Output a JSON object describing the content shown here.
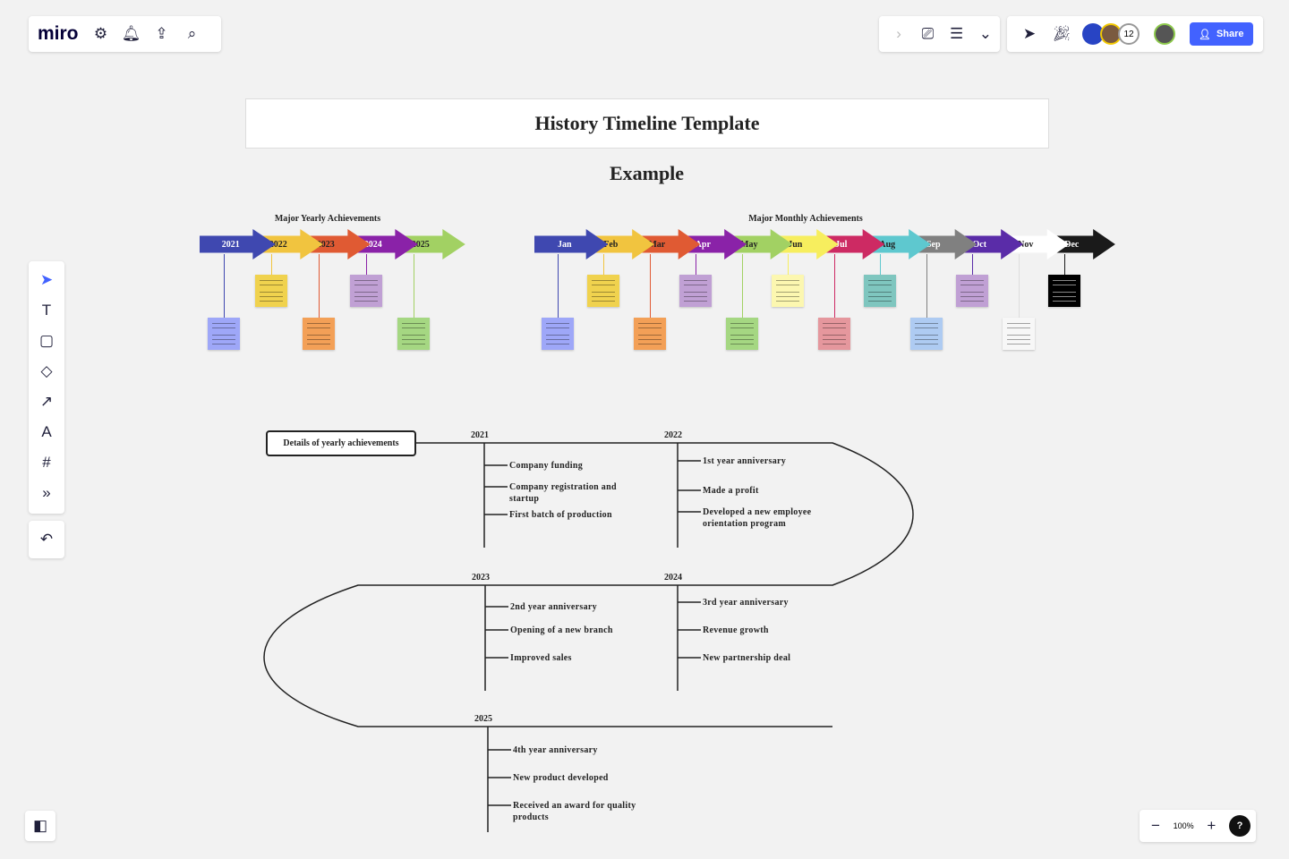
{
  "app": {
    "logo": "miro",
    "zoom": "100%",
    "share_label": "Share",
    "collaborator_count": "12",
    "help": "?"
  },
  "board": {
    "title": "History Timeline Template",
    "subtitle": "Example",
    "yearly": {
      "heading": "Major Yearly Achievements",
      "items": [
        {
          "label": "2021",
          "color": "#3f48b0",
          "text_color": "#ffffff",
          "note_color": "#9ea7f8"
        },
        {
          "label": "2022",
          "color": "#f1c43f",
          "text_color": "#222222",
          "note_color": "#f0d24e"
        },
        {
          "label": "2023",
          "color": "#e05a33",
          "text_color": "#222222",
          "note_color": "#f3a057"
        },
        {
          "label": "2024",
          "color": "#8a22a8",
          "text_color": "#ffffff",
          "note_color": "#c0a0d4"
        },
        {
          "label": "2025",
          "color": "#a2d163",
          "text_color": "#222222",
          "note_color": "#a5d782"
        }
      ]
    },
    "monthly": {
      "heading": "Major Monthly Achievements",
      "items": [
        {
          "label": "Jan",
          "color": "#3f48b0",
          "text_color": "#ffffff",
          "note_color": "#9ea7f8"
        },
        {
          "label": "Feb",
          "color": "#f1c43f",
          "text_color": "#222222",
          "note_color": "#f0d24e"
        },
        {
          "label": "Mar",
          "color": "#e05a33",
          "text_color": "#222222",
          "note_color": "#f3a057"
        },
        {
          "label": "Apr",
          "color": "#8a22a8",
          "text_color": "#ffffff",
          "note_color": "#c0a0d4"
        },
        {
          "label": "May",
          "color": "#a2d163",
          "text_color": "#222222",
          "note_color": "#a5d782"
        },
        {
          "label": "Jun",
          "color": "#f7ee5e",
          "text_color": "#222222",
          "note_color": "#fcf7b0"
        },
        {
          "label": "Jul",
          "color": "#cd2a63",
          "text_color": "#ffffff",
          "note_color": "#e5979d"
        },
        {
          "label": "Aug",
          "color": "#5ec8cf",
          "text_color": "#222222",
          "note_color": "#7fc6bf"
        },
        {
          "label": "Sep",
          "color": "#808080",
          "text_color": "#ffffff",
          "note_color": "#aecbf2"
        },
        {
          "label": "Oct",
          "color": "#5a2ca8",
          "text_color": "#ffffff",
          "note_color": "#c0a0d4"
        },
        {
          "label": "Nov",
          "color": "#ffffff",
          "text_color": "#222222",
          "note_color": "#f7f7f7"
        },
        {
          "label": "Dec",
          "color": "#1a1a1a",
          "text_color": "#ffffff",
          "note_color": "#000000"
        }
      ]
    },
    "details": {
      "label": "Details of yearly achievements",
      "years": [
        {
          "year": "2021",
          "items": [
            "Company funding",
            "Company registration and startup",
            "First batch of production"
          ]
        },
        {
          "year": "2022",
          "items": [
            "1st year anniversary",
            "Made  a profit",
            "Developed a new employee orientation program"
          ]
        },
        {
          "year": "2023",
          "items": [
            "2nd year anniversary",
            "Opening of a new branch",
            "Improved sales"
          ]
        },
        {
          "year": "2024",
          "items": [
            "3rd year anniversary",
            "Revenue growth",
            "New partnership deal"
          ]
        },
        {
          "year": "2025",
          "items": [
            "4th year anniversary",
            "New product developed",
            "Received an award for quality products"
          ]
        }
      ]
    }
  }
}
